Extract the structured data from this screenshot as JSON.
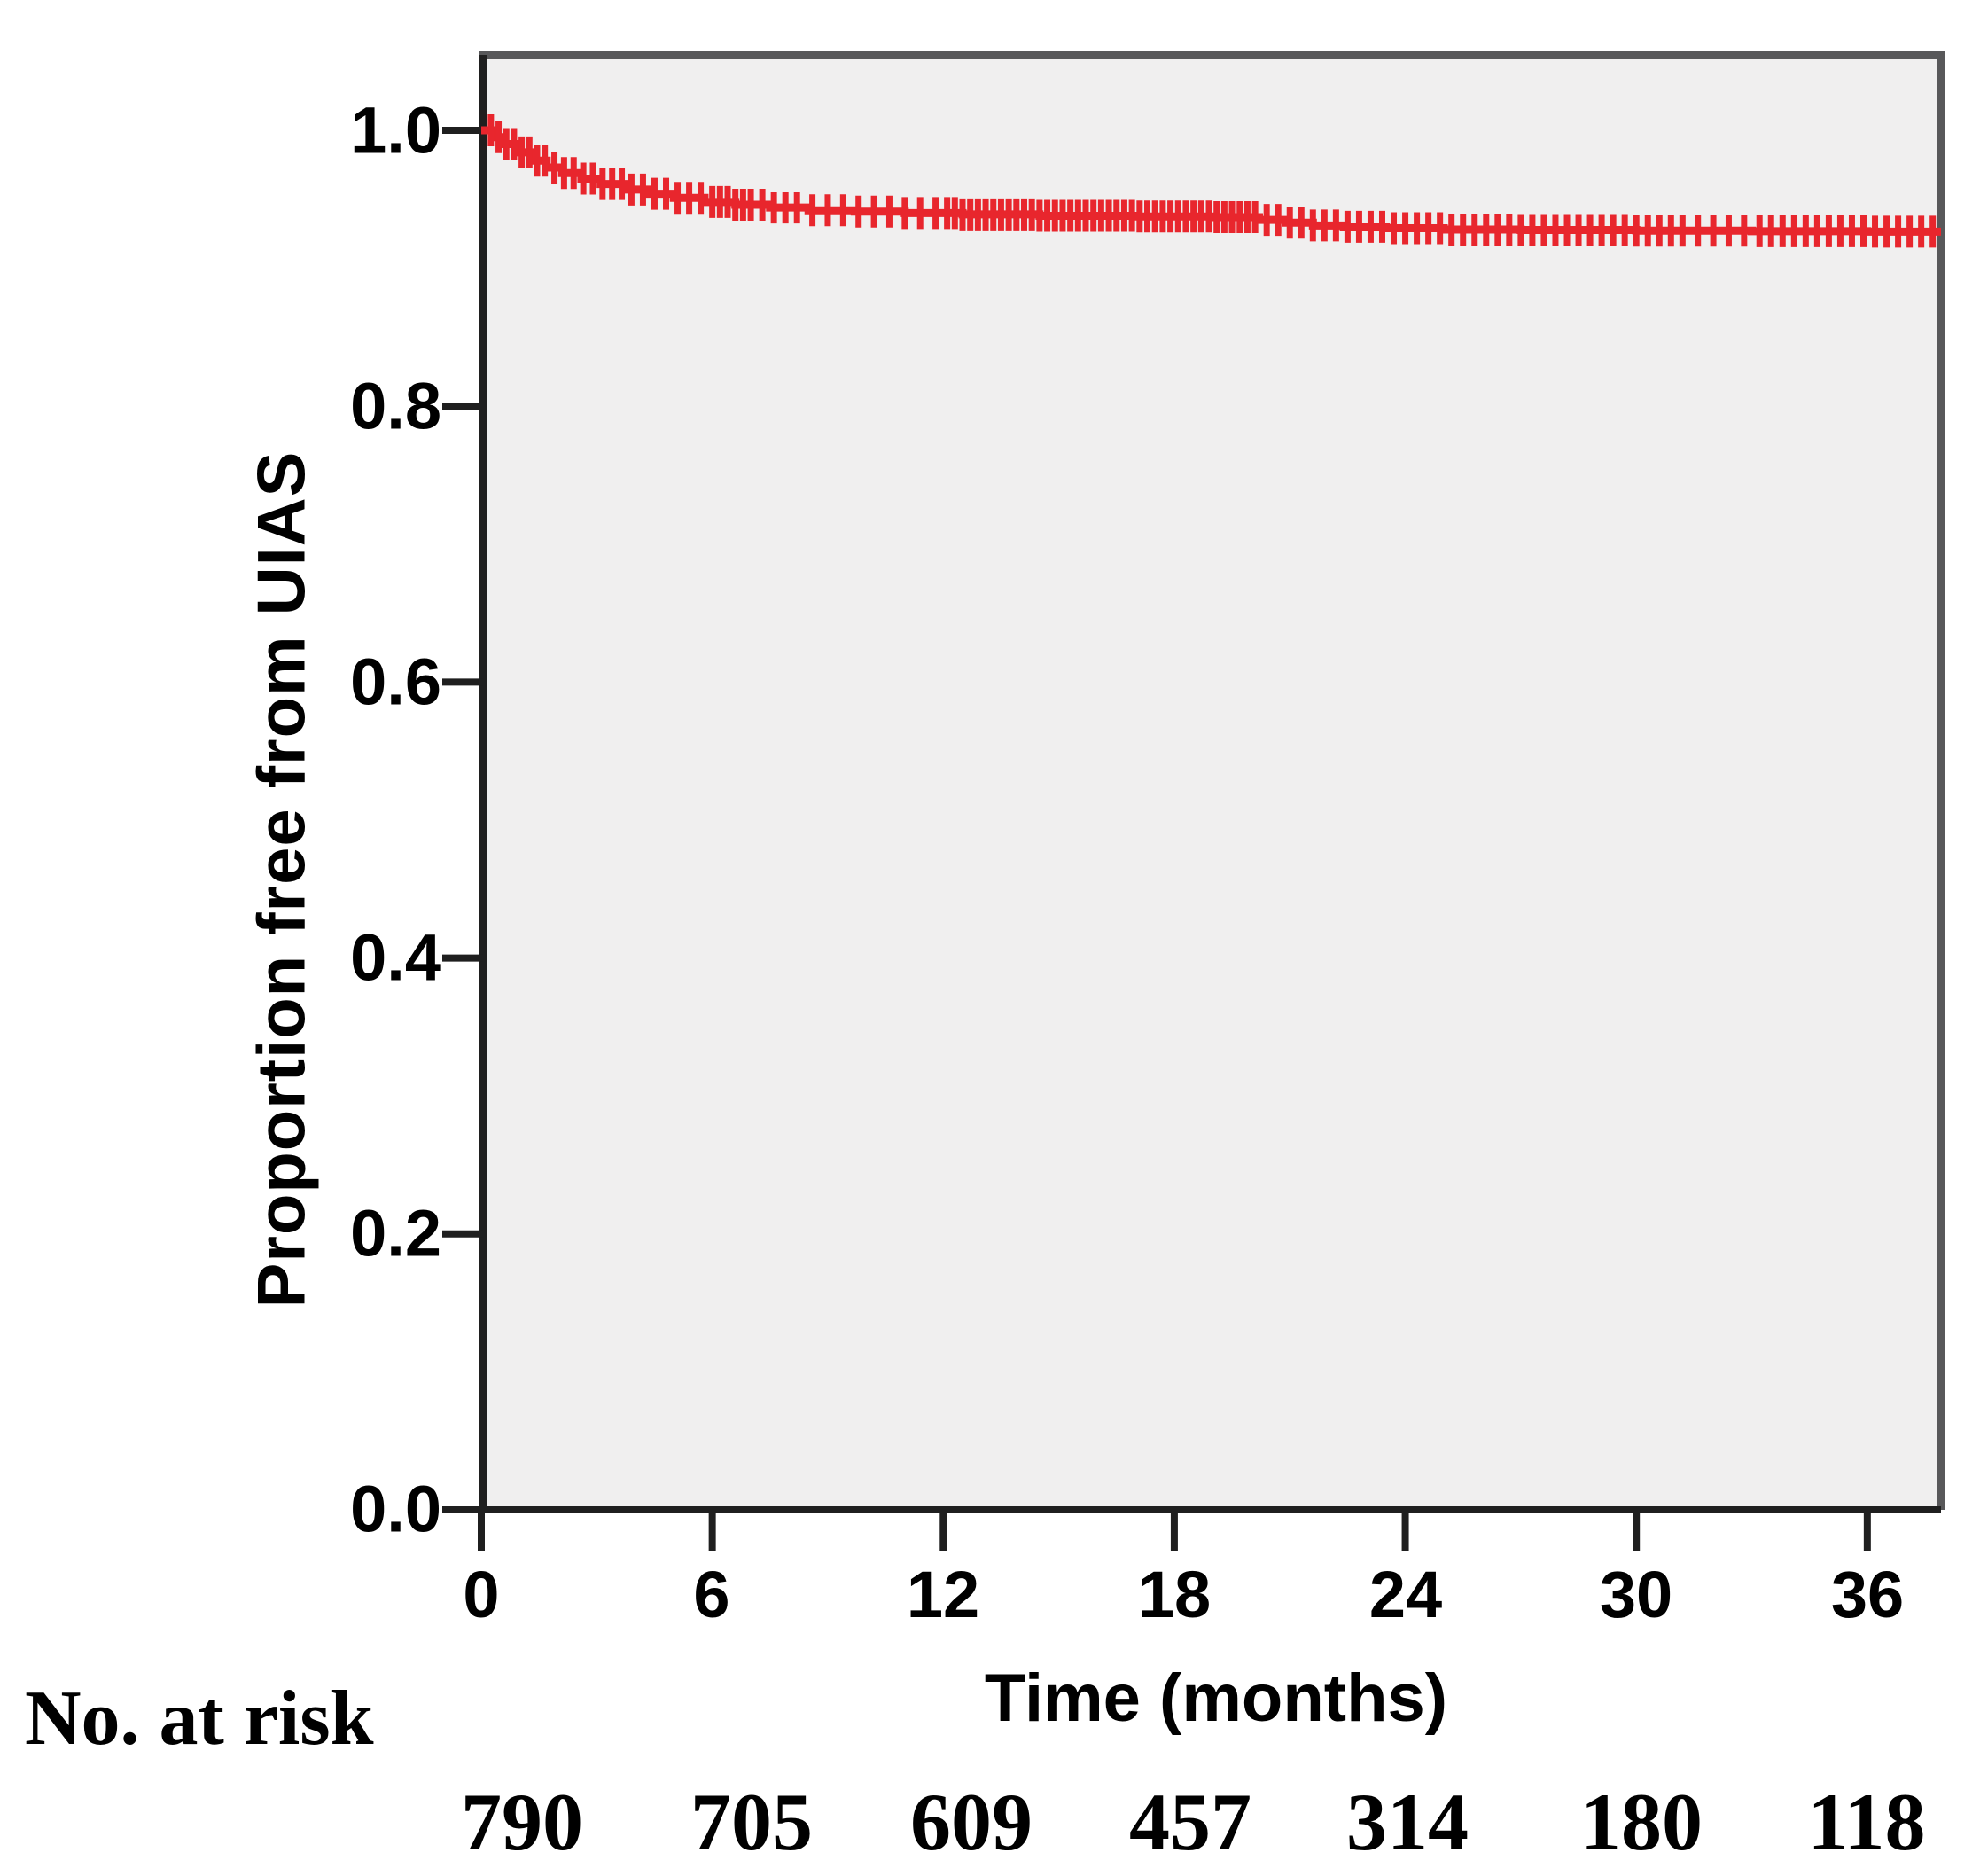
{
  "style": {
    "plot_bg": "#F0EFEF",
    "frame_color": "#58585A",
    "axis_color": "#1F1F1F",
    "text_color": "#000000",
    "curve_color": "#E8262D"
  },
  "chart_data": {
    "type": "line",
    "subtype": "kaplan-meier-step",
    "title": "",
    "xlabel": "Time (months)",
    "ylabel": "Proportion free from UIAS",
    "xlim": [
      0,
      37.9
    ],
    "ylim": [
      0.0,
      1.05
    ],
    "grid": false,
    "legend_position": "none",
    "xticks": [
      0,
      6,
      12,
      18,
      24,
      30,
      36
    ],
    "ytick_labels": [
      "1.0",
      "0.8",
      "0.6",
      "0.4",
      "0.2",
      "0.0"
    ],
    "ytick_values": [
      1.0,
      0.8,
      0.6,
      0.4,
      0.2,
      0.0
    ],
    "series": [
      {
        "name": "Proportion free from UIAS",
        "color": "#E8262D",
        "km_steps": [
          [
            0,
            1.0
          ],
          [
            0.3,
            0.995
          ],
          [
            0.6,
            0.99
          ],
          [
            0.9,
            0.984
          ],
          [
            1.3,
            0.978
          ],
          [
            1.7,
            0.973
          ],
          [
            2.1,
            0.969
          ],
          [
            2.6,
            0.965
          ],
          [
            3.1,
            0.961
          ],
          [
            3.7,
            0.957
          ],
          [
            4.3,
            0.954
          ],
          [
            5.0,
            0.951
          ],
          [
            5.8,
            0.948
          ],
          [
            6.6,
            0.946
          ],
          [
            7.5,
            0.944
          ],
          [
            8.5,
            0.942
          ],
          [
            9.7,
            0.941
          ],
          [
            11.0,
            0.94
          ],
          [
            12.5,
            0.939
          ],
          [
            14.5,
            0.938
          ],
          [
            17.0,
            0.9375
          ],
          [
            19.0,
            0.937
          ],
          [
            20.2,
            0.935
          ],
          [
            20.9,
            0.933
          ],
          [
            21.6,
            0.931
          ],
          [
            22.4,
            0.93
          ],
          [
            23.5,
            0.929
          ],
          [
            25.0,
            0.928
          ],
          [
            27.0,
            0.9277
          ],
          [
            30.0,
            0.9272
          ],
          [
            33.0,
            0.9268
          ],
          [
            36.0,
            0.9265
          ],
          [
            37.9,
            0.9265
          ]
        ],
        "censor_marks": [
          0.25,
          0.45,
          0.65,
          0.85,
          1.05,
          1.25,
          1.45,
          1.65,
          1.9,
          2.15,
          2.4,
          2.65,
          2.9,
          3.15,
          3.4,
          3.65,
          3.9,
          4.2,
          4.5,
          4.8,
          5.1,
          5.4,
          5.7,
          6.0,
          6.2,
          6.4,
          6.6,
          6.8,
          7.0,
          7.3,
          7.6,
          7.9,
          8.2,
          8.6,
          9.0,
          9.4,
          9.8,
          10.2,
          10.6,
          11.0,
          11.4,
          11.8,
          12.1,
          12.3,
          12.5,
          12.7,
          12.9,
          13.1,
          13.3,
          13.5,
          13.7,
          13.9,
          14.1,
          14.3,
          14.5,
          14.7,
          14.9,
          15.1,
          15.3,
          15.5,
          15.7,
          15.9,
          16.1,
          16.3,
          16.5,
          16.7,
          16.9,
          17.1,
          17.3,
          17.5,
          17.7,
          17.9,
          18.1,
          18.3,
          18.5,
          18.7,
          18.9,
          19.1,
          19.3,
          19.5,
          19.7,
          19.9,
          20.1,
          20.4,
          20.7,
          21.0,
          21.3,
          21.6,
          21.9,
          22.2,
          22.5,
          22.8,
          23.1,
          23.4,
          23.7,
          24.0,
          24.3,
          24.6,
          24.9,
          25.2,
          25.5,
          25.8,
          26.1,
          26.4,
          26.7,
          27.0,
          27.3,
          27.6,
          27.9,
          28.2,
          28.5,
          28.8,
          29.1,
          29.4,
          29.7,
          30.0,
          30.3,
          30.6,
          30.9,
          31.2,
          31.6,
          32.0,
          32.4,
          32.8,
          33.2,
          33.5,
          33.8,
          34.1,
          34.4,
          34.7,
          35.0,
          35.3,
          35.6,
          35.9,
          36.2,
          36.5,
          36.8,
          37.1,
          37.4,
          37.7
        ]
      }
    ],
    "at_risk": {
      "label": "No. at risk",
      "times": [
        0,
        6,
        12,
        18,
        24,
        30,
        36
      ],
      "counts": [
        "790",
        "705",
        "609",
        "457",
        "314",
        "180",
        "118"
      ]
    }
  }
}
